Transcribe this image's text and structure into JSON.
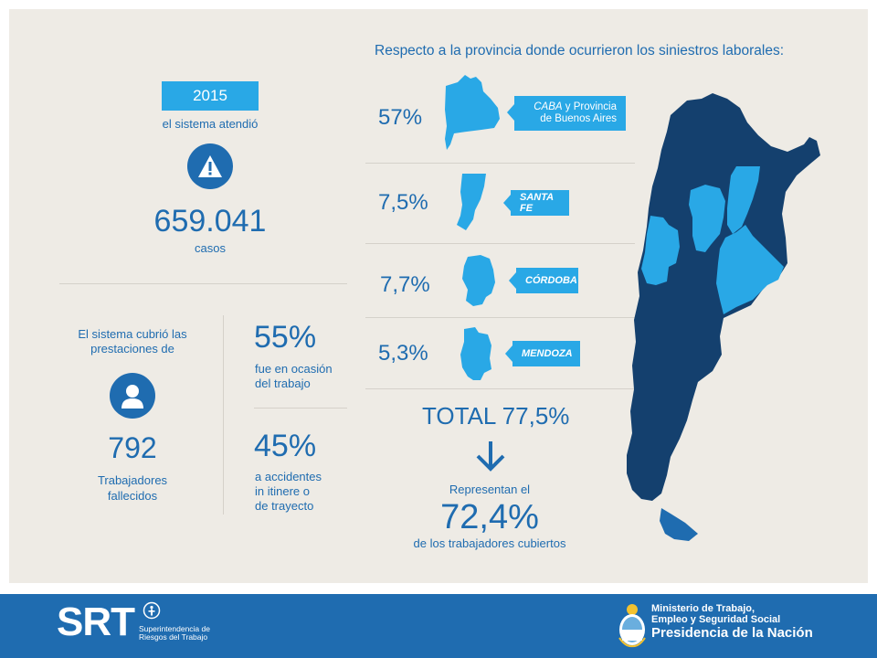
{
  "left": {
    "year": "2015",
    "attended_label": "el sistema atendió",
    "cases_number": "659.041",
    "cases_label": "casos",
    "covered_label_line1": "El sistema cubrió las",
    "covered_label_line2": "prestaciones de",
    "deaths_number": "792",
    "deaths_label_line1": "Trabajadores",
    "deaths_label_line2": "fallecidos",
    "work_pct": "55%",
    "work_label_line1": "fue en ocasión",
    "work_label_line2": "del trabajo",
    "commute_pct": "45%",
    "commute_label_line1": "a accidentes",
    "commute_label_line2": "in itinere o",
    "commute_label_line3": "de trayecto"
  },
  "right": {
    "heading": "Respecto a la provincia donde ocurrieron los siniestros laborales:",
    "provinces": [
      {
        "pct": "57%",
        "name_italic": "CABA",
        "name_rest": " y Provincia",
        "name_line2": "de Buenos Aires"
      },
      {
        "pct": "7,5%",
        "name": "SANTA FE"
      },
      {
        "pct": "7,7%",
        "name": "CÓRDOBA"
      },
      {
        "pct": "5,3%",
        "name": "MENDOZA"
      }
    ],
    "total_label": "TOTAL",
    "total_value": "77,5%",
    "represent_label": "Representan el",
    "represent_pct": "72,4%",
    "represent_sub": "de los trabajadores cubiertos"
  },
  "footer": {
    "logo_text": "SRT",
    "logo_sub_line1": "Superintendencia de",
    "logo_sub_line2": "Riesgos del Trabajo",
    "ministry_line1": "Ministerio de Trabajo,",
    "ministry_line2": "Empleo y Seguridad Social",
    "ministry_line3": "Presidencia de la Nación"
  },
  "colors": {
    "primary_blue": "#1f6cb0",
    "light_blue": "#29a8e6",
    "dark_navy": "#14406e",
    "background": "#eeebe5"
  }
}
